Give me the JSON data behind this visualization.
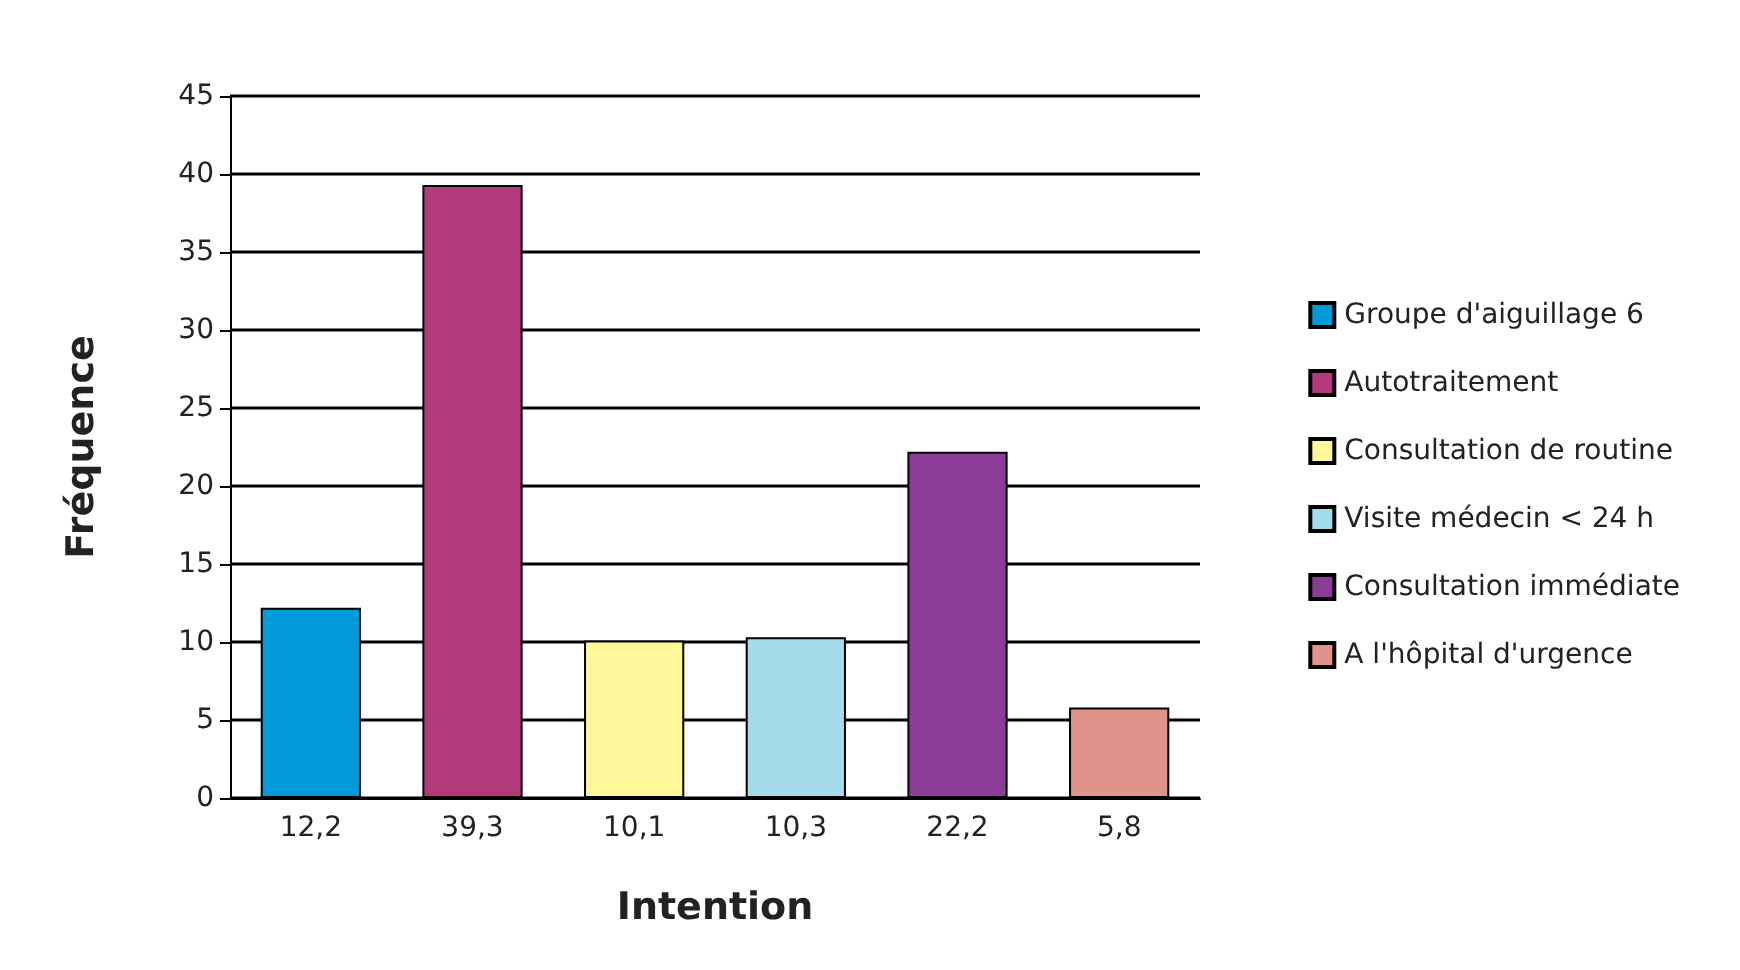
{
  "chart_data": {
    "type": "bar",
    "xlabel": "Intention",
    "ylabel": "Fréquence",
    "categories": [
      "12,2",
      "39,3",
      "10,1",
      "10,3",
      "22,2",
      "5,8"
    ],
    "series": [
      {
        "name": "Groupe d'aiguillage 6",
        "color": "#009ad9",
        "values": [
          12.2,
          null,
          null,
          null,
          null,
          null
        ]
      },
      {
        "name": "Autotraitement",
        "color": "#b23a7a",
        "values": [
          null,
          39.3,
          null,
          null,
          null,
          null
        ]
      },
      {
        "name": "Consultation de routine",
        "color": "#fff799",
        "values": [
          null,
          null,
          10.1,
          null,
          null,
          null
        ]
      },
      {
        "name": "Visite médecin < 24 h",
        "color": "#a5dcec",
        "values": [
          null,
          null,
          null,
          10.3,
          null,
          null
        ]
      },
      {
        "name": "Consultation immédiate",
        "color": "#8b3c97",
        "values": [
          null,
          null,
          null,
          null,
          22.2,
          null
        ]
      },
      {
        "name": "A l'hôpital d'urgence",
        "color": "#e0938a",
        "values": [
          null,
          null,
          null,
          null,
          null,
          5.8
        ]
      }
    ],
    "ylim": [
      0,
      45
    ],
    "yticks": [
      0,
      5,
      10,
      15,
      20,
      25,
      30,
      35,
      40,
      45
    ],
    "grid": "y",
    "legend": "right"
  }
}
